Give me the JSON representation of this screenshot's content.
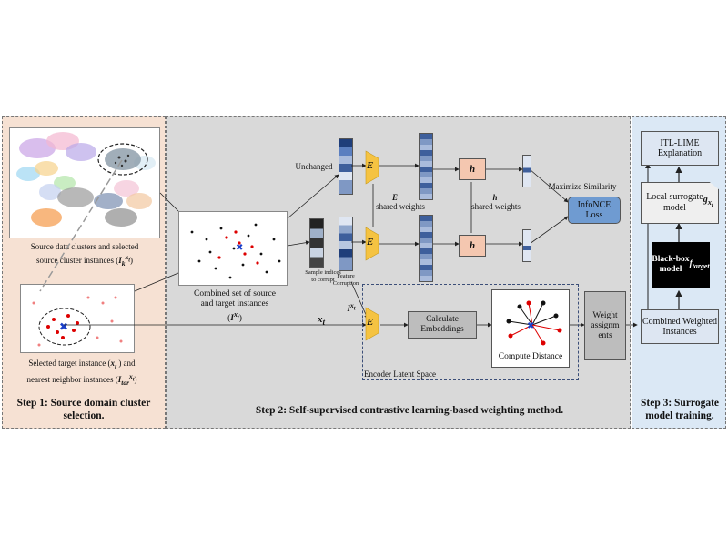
{
  "steps": {
    "step1": "Step 1: Source domain cluster selection.",
    "step2": "Step 2: Self-supervised contrastive learning-based weighting method.",
    "step3": "Step 3: Surrogate model training."
  },
  "captions": {
    "source_clusters": "Source data clusters and selected source cluster instances (I_k^{x_t})",
    "target_instance": "Selected target instance (x_t ) and nearest neighbor instances (I_tar^{x_t})",
    "combined_set": "Combined set of source and target instances (I^{x_t})",
    "sample_indices": "Sample indices to corrupt",
    "feature_corruption": "Feature Corruption",
    "unchanged": "Unchanged",
    "e_shared": "shared weights",
    "h_shared": "shared weights",
    "maximize_similarity": "Maximize Similarity",
    "encoder_latent_space": "Encoder Latent Space",
    "ix_t": "I^{x_t}",
    "x_t": "x_t"
  },
  "nodes": {
    "encoder": "E",
    "projection": "h",
    "e_label": "E",
    "h_label": "h",
    "infonce": "InfoNCE Loss",
    "calc_embeddings": "Calculate Embeddings",
    "compute_distance": "Compute Distance",
    "weight_assignments": "Weight assignm ents",
    "itl_lime": "ITL-LIME Explanation",
    "local_surrogate": "Local surrogate model g_{x_t}",
    "black_box": "Black-box model f_target",
    "combined_weighted": "Combined Weighted Instances"
  },
  "colors": {
    "step1_bg": "#f6e1d3",
    "step2_bg": "#d9d9d9",
    "step3_bg": "#dbe8f5",
    "encoder": "#f5c342",
    "projection": "#f4c7b0",
    "infonce": "#6f9bd1",
    "embedding": "#5b7fc0"
  }
}
